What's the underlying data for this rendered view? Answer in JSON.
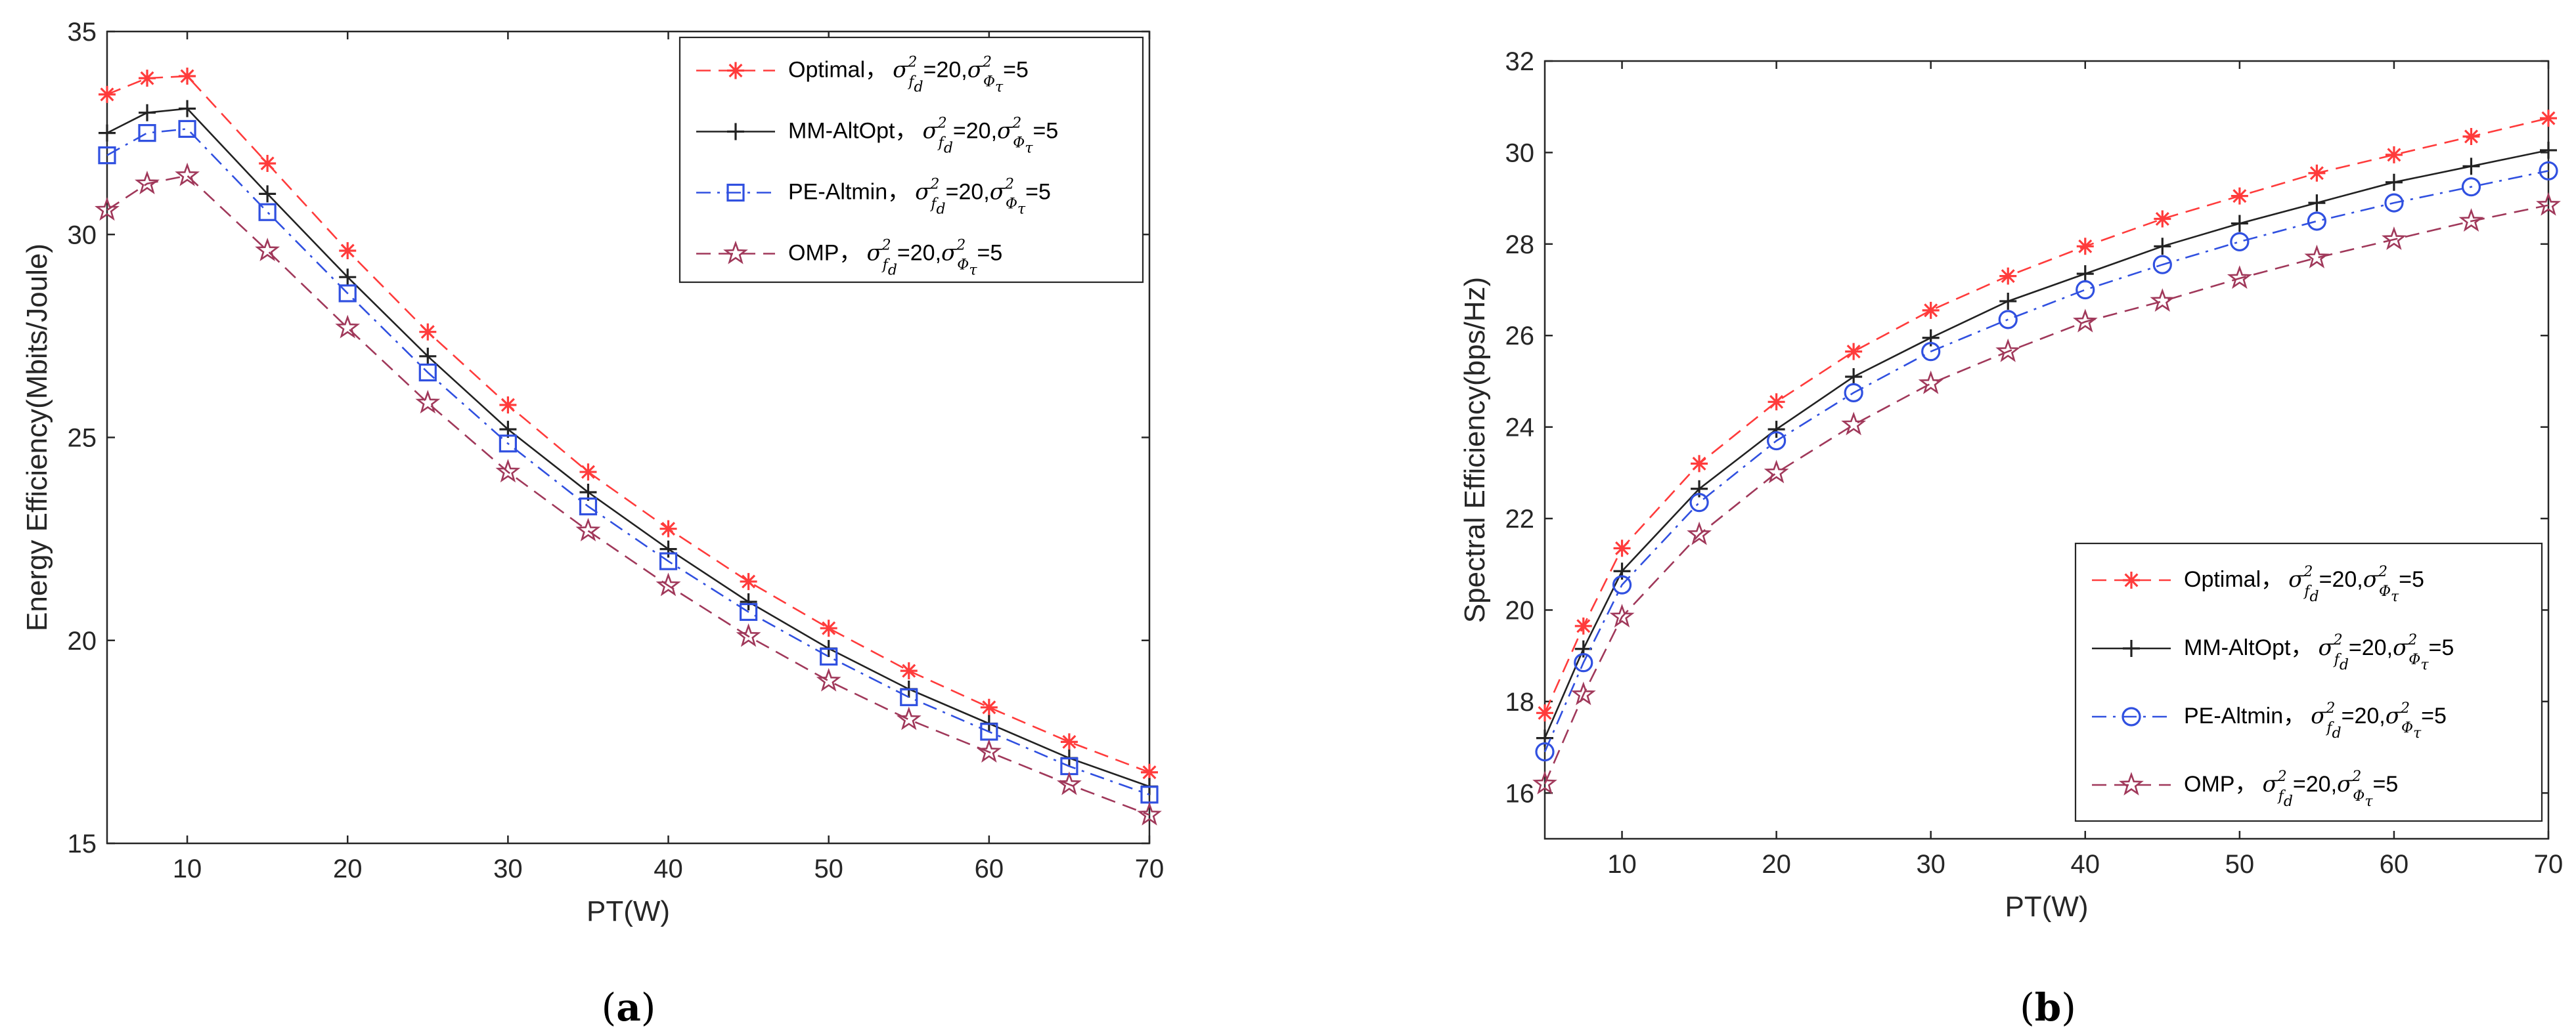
{
  "chart_data": [
    {
      "type": "line",
      "panel_label": [
        "(",
        "a",
        ")"
      ],
      "xlabel": "PT(W)",
      "ylabel": "Energy Efficiency(Mbits/Joule)",
      "xlim": [
        5,
        70
      ],
      "ylim": [
        15,
        35
      ],
      "xticks": [
        "10",
        "20",
        "30",
        "40",
        "50",
        "60",
        "70"
      ],
      "yticks": [
        "15",
        "20",
        "25",
        "30",
        "35"
      ],
      "legend_position": "top-right",
      "x": [
        5,
        7.5,
        10,
        15,
        20,
        25,
        30,
        35,
        40,
        45,
        50,
        55,
        60,
        65,
        70
      ],
      "series": [
        {
          "name": "Optimal",
          "color": "#ff3b3b",
          "marker": "asterisk",
          "dash": "dashed",
          "values": [
            33.45,
            33.85,
            33.9,
            31.75,
            29.6,
            27.6,
            25.8,
            24.15,
            22.75,
            21.45,
            20.3,
            19.25,
            18.35,
            17.5,
            16.75
          ]
        },
        {
          "name": "MM-AltOpt",
          "color": "#222222",
          "marker": "plus",
          "dash": "solid",
          "values": [
            32.5,
            33.0,
            33.1,
            31.0,
            28.95,
            27.0,
            25.2,
            23.65,
            22.25,
            20.95,
            19.8,
            18.8,
            17.95,
            17.1,
            16.4
          ]
        },
        {
          "name": "PE-Altmin",
          "color": "#3050e0",
          "marker": "square",
          "dash": "dashdot",
          "values": [
            31.95,
            32.5,
            32.6,
            30.55,
            28.55,
            26.6,
            24.85,
            23.3,
            21.95,
            20.7,
            19.6,
            18.6,
            17.75,
            16.9,
            16.2
          ]
        },
        {
          "name": "OMP",
          "color": "#a0385a",
          "marker": "pentagram",
          "dash": "dashed",
          "values": [
            30.6,
            31.25,
            31.45,
            29.6,
            27.7,
            25.85,
            24.15,
            22.7,
            21.35,
            20.1,
            19.0,
            18.05,
            17.25,
            16.45,
            15.7
          ]
        }
      ]
    },
    {
      "type": "line",
      "panel_label": [
        "(",
        "b",
        ")"
      ],
      "xlabel": "PT(W)",
      "ylabel": "Spectral Efficiency(bps/Hz)",
      "xlim": [
        5,
        70
      ],
      "ylim": [
        15,
        32
      ],
      "xticks": [
        "10",
        "20",
        "30",
        "40",
        "50",
        "60",
        "70"
      ],
      "yticks": [
        "16",
        "18",
        "20",
        "22",
        "24",
        "26",
        "28",
        "30",
        "32"
      ],
      "legend_position": "bottom-right",
      "x": [
        5,
        7.5,
        10,
        15,
        20,
        25,
        30,
        35,
        40,
        45,
        50,
        55,
        60,
        65,
        70
      ],
      "series": [
        {
          "name": "Optimal",
          "color": "#ff3b3b",
          "marker": "asterisk",
          "dash": "dashed",
          "values": [
            17.75,
            19.65,
            21.35,
            23.2,
            24.55,
            25.65,
            26.55,
            27.3,
            27.95,
            28.55,
            29.05,
            29.55,
            29.95,
            30.35,
            30.75
          ]
        },
        {
          "name": "MM-AltOpt",
          "color": "#222222",
          "marker": "plus",
          "dash": "solid",
          "values": [
            17.2,
            19.15,
            20.85,
            22.65,
            23.95,
            25.1,
            25.95,
            26.75,
            27.35,
            27.95,
            28.45,
            28.9,
            29.35,
            29.7,
            30.05
          ]
        },
        {
          "name": "PE-Altmin",
          "color": "#3050e0",
          "marker": "circle",
          "dash": "dashdot",
          "values": [
            16.9,
            18.85,
            20.55,
            22.35,
            23.7,
            24.75,
            25.65,
            26.35,
            27.0,
            27.55,
            28.05,
            28.5,
            28.9,
            29.25,
            29.6
          ]
        },
        {
          "name": "OMP",
          "color": "#a0385a",
          "marker": "pentagram",
          "dash": "dashed",
          "values": [
            16.2,
            18.15,
            19.85,
            21.65,
            23.0,
            24.05,
            24.95,
            25.65,
            26.3,
            26.75,
            27.25,
            27.7,
            28.1,
            28.5,
            28.85
          ]
        }
      ]
    }
  ],
  "legend_math": {
    "sep": "，",
    "sigma": "σ",
    "sup": "2",
    "sub_f": "f",
    "sub_d": "d",
    "eq20": "=20,",
    "sub_phi": "Φ",
    "sub_tau": "τ",
    "eq5": "=5"
  }
}
